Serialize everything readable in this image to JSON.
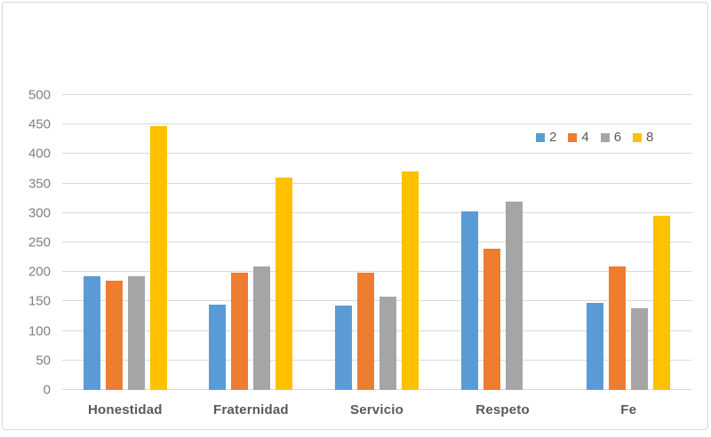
{
  "chart_data": {
    "type": "bar",
    "categories": [
      "Honestidad",
      "Fraternidad",
      "Servicio",
      "Respeto",
      "Fe"
    ],
    "series": [
      {
        "name": "2",
        "color": "#5B9BD5",
        "values": [
          193,
          145,
          143,
          302,
          148
        ]
      },
      {
        "name": "4",
        "color": "#ED7D31",
        "values": [
          185,
          199,
          199,
          240,
          210
        ]
      },
      {
        "name": "6",
        "color": "#A5A5A5",
        "values": [
          193,
          210,
          158,
          320,
          139
        ]
      },
      {
        "name": "8",
        "color": "#FFC000",
        "values": [
          447,
          360,
          370,
          null,
          295
        ]
      }
    ],
    "xlabel": "",
    "ylabel": "",
    "ylim": [
      0,
      500
    ],
    "yticks": [
      0,
      50,
      100,
      150,
      200,
      250,
      300,
      350,
      400,
      450,
      500
    ],
    "grid": "horizontal",
    "legend_position": "upper-right",
    "gridline_color": "#D9D9D9",
    "axis_tick_color": "#7F7F7F",
    "category_label_color": "#595959",
    "background_color": "#FFFFFF",
    "border_color": "#D9D9D9"
  }
}
